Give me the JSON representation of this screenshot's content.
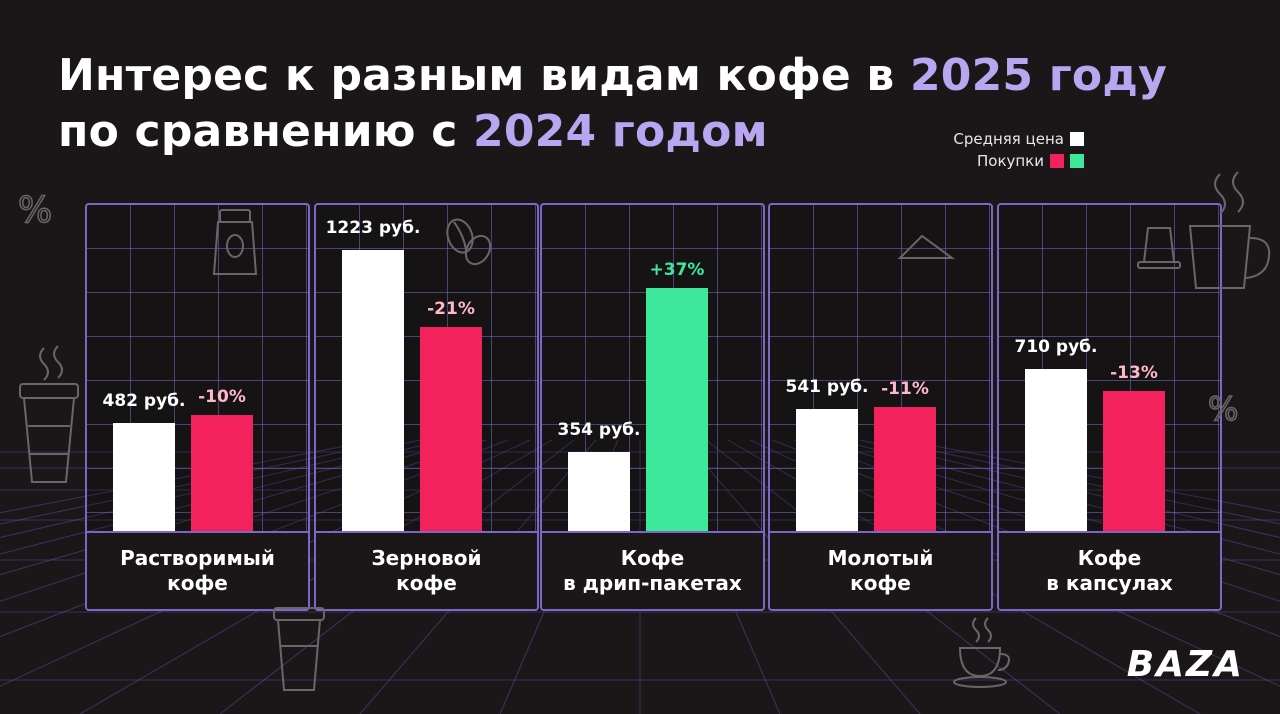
{
  "title": {
    "line1_a": "Интерес к разным видам кофе в ",
    "line1_hl": "2025 году",
    "line2_a": "по сравнению с ",
    "line2_hl": "2024 годом"
  },
  "legend": {
    "price_label": "Средняя цена",
    "purchases_label": "Покупки"
  },
  "colors": {
    "price": "#ffffff",
    "purchases_down": "#f4225c",
    "purchases_up": "#3ee89a",
    "accent": "#b9a6f0",
    "grid": "#7d67c4"
  },
  "chart_data": {
    "type": "bar",
    "categories": [
      "Растворимый кофе",
      "Зерновой кофе",
      "Кофе в дрип-пакетах",
      "Молотый кофе",
      "Кофе в капсулах"
    ],
    "category_lines": [
      [
        "Растворимый",
        "кофе"
      ],
      [
        "Зерновой",
        "кофе"
      ],
      [
        "Кофе",
        "в дрип-пакетах"
      ],
      [
        "Молотый",
        "кофе"
      ],
      [
        "Кофе",
        "в капсулах"
      ]
    ],
    "series": [
      {
        "name": "Средняя цена",
        "values": [
          482,
          1223,
          354,
          541,
          710
        ],
        "labels": [
          "482 руб.",
          "1223 руб.",
          "354 руб.",
          "541 руб.",
          "710 руб."
        ]
      },
      {
        "name": "Покупки",
        "values": [
          -10,
          -21,
          37,
          -11,
          -13
        ],
        "labels": [
          "-10%",
          "-21%",
          "+37%",
          "-11%",
          "-13%"
        ]
      }
    ]
  },
  "logo": "BAZA"
}
